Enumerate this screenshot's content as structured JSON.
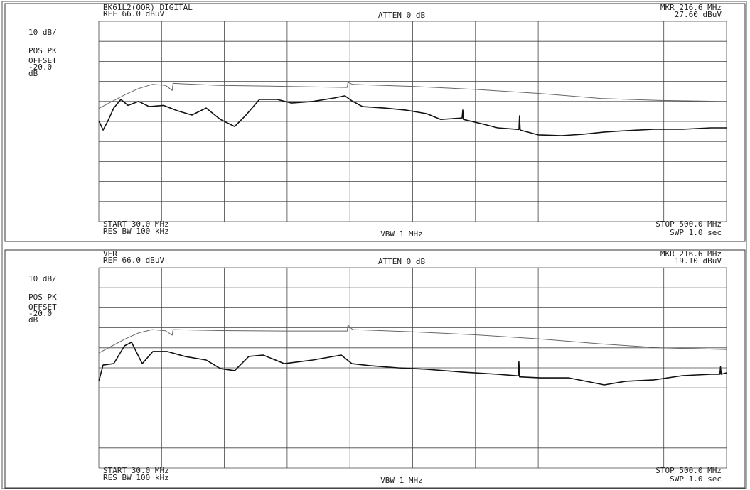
{
  "chart_data": [
    {
      "type": "line",
      "trace_label": "BK61L2(OOR) DIGITAL",
      "ref_level": "REF 66.0 dBuV",
      "atten": "ATTEN 0 dB",
      "marker_freq": "MKR 216.6 MHz",
      "marker_level": "27.60 dBuV",
      "scale": "10 dB/",
      "detector": "POS PK",
      "offset_label": "OFFSET",
      "offset": "-20.0",
      "offset_unit": "dB",
      "start": "START 30.0 MHz",
      "rbw": "RES BW 100 kHz",
      "vbw": "VBW 1 MHz",
      "stop": "STOP 500.0 MHz",
      "sweep": "SWP 1.0 sec",
      "xlim": [
        30,
        500
      ],
      "ylim": [
        -34,
        66
      ],
      "xticks": [
        30,
        77,
        124,
        171,
        218,
        265,
        312,
        359,
        406,
        453,
        500
      ],
      "yticks": [
        -34,
        -24,
        -14,
        -4,
        6,
        16,
        26,
        36,
        46,
        56,
        66
      ],
      "grid": true,
      "series": [
        {
          "color": "#666666",
          "x": [
            30,
            40,
            50,
            60,
            70,
            80,
            85,
            85.5,
            120,
            170,
            216,
            216.5,
            220,
            265,
            312,
            359,
            406,
            450,
            500
          ],
          "values": [
            22.5,
            26,
            29.5,
            32.5,
            34.5,
            34,
            31.5,
            35,
            34,
            33.5,
            33,
            35.5,
            34.5,
            33.5,
            32,
            30,
            27.5,
            26.5,
            26
          ]
        },
        {
          "color": "#111111",
          "x": [
            30,
            33.2,
            36.9,
            41.2,
            46.5,
            51.8,
            59.8,
            67.8,
            78.4,
            89.1,
            99.7,
            110.4,
            121,
            131.7,
            139.7,
            150.3,
            163.6,
            174.3,
            190.2,
            206.2,
            214.2,
            219.5,
            227.5,
            243.5,
            259.4,
            275.4,
            286,
            302,
            302.5,
            303,
            318,
            328.6,
            344.6,
            345,
            345.5,
            359,
            376.5,
            392.5,
            408.5,
            424.4,
            445.7,
            467,
            488.3,
            500
          ],
          "values": [
            16.4,
            11.7,
            16.4,
            22.7,
            27,
            24,
            26,
            23.4,
            24,
            21.3,
            19.2,
            22.7,
            17,
            13.5,
            18.8,
            27,
            27,
            25.2,
            26,
            27.7,
            28.8,
            26.3,
            23.4,
            22.7,
            21.7,
            19.9,
            17,
            17.7,
            21.7,
            17,
            14.6,
            12.8,
            12,
            18.8,
            11.7,
            9.3,
            8.9,
            9.6,
            10.7,
            11.4,
            12.1,
            12.1,
            12.8,
            12.8
          ]
        }
      ]
    },
    {
      "type": "line",
      "trace_label": "VER",
      "ref_level": "REF 66.0 dBuV",
      "atten": "ATTEN 0 dB",
      "marker_freq": "MKR 216.6 MHz",
      "marker_level": "19.10 dBuV",
      "scale": "10 dB/",
      "detector": "POS PK",
      "offset_label": "OFFSET",
      "offset": "-20.0",
      "offset_unit": "dB",
      "start": "START 30.0 MHz",
      "rbw": "RES BW 100 kHz",
      "vbw": "VBW 1 MHz",
      "stop": "STOP 500.0 MHz",
      "sweep": "SWP 1.0 sec",
      "xlim": [
        30,
        500
      ],
      "ylim": [
        -34,
        66
      ],
      "xticks": [
        30,
        77,
        124,
        171,
        218,
        265,
        312,
        359,
        406,
        453,
        500
      ],
      "yticks": [
        -34,
        -24,
        -14,
        -4,
        6,
        16,
        26,
        36,
        46,
        56,
        66
      ],
      "grid": true,
      "series": [
        {
          "color": "#666666",
          "x": [
            30,
            40,
            50,
            60,
            70,
            80,
            85,
            85.5,
            120,
            170,
            216,
            216.5,
            220,
            265,
            312,
            359,
            406,
            450,
            500
          ],
          "values": [
            23.4,
            27,
            30.5,
            33.5,
            35.1,
            34.5,
            32.3,
            35.1,
            34.6,
            34.4,
            34.4,
            37.3,
            35.1,
            34,
            32.5,
            30.5,
            28,
            26,
            25.2
          ]
        },
        {
          "color": "#111111",
          "x": [
            30,
            33.2,
            41.2,
            49.2,
            54.5,
            62.5,
            70.5,
            81.1,
            94.4,
            110.4,
            121,
            131.7,
            142.3,
            153,
            168.9,
            190.2,
            211.5,
            219.5,
            232.8,
            254.1,
            275.4,
            302,
            328.6,
            344,
            344.5,
            345,
            360.6,
            381.9,
            408.5,
            424.4,
            445.7,
            467,
            488.3,
            495,
            495.5,
            496,
            500
          ],
          "values": [
            9.3,
            17.4,
            18.1,
            27,
            28.8,
            18.1,
            24.2,
            24.2,
            21.7,
            19.9,
            15.6,
            14.6,
            21.7,
            22.4,
            18.1,
            19.9,
            22.4,
            18.1,
            17.1,
            16,
            15.3,
            13.9,
            12.8,
            12,
            19,
            11.5,
            11,
            11,
            7.5,
            9.3,
            10,
            12.1,
            12.8,
            12.8,
            16.5,
            12.8,
            13.5
          ]
        }
      ]
    }
  ]
}
